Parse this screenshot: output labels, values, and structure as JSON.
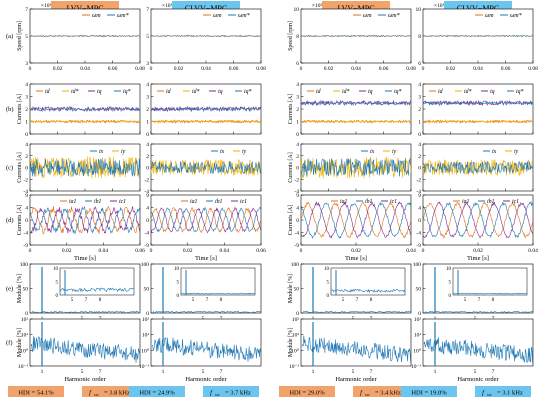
{
  "columns": [
    {
      "title": "LVV−MPC",
      "title_color": "#f2a36b",
      "time_ticks": [
        "0",
        "0.02",
        "0.04",
        "0.06",
        "0.08"
      ],
      "d_time_ticks": [
        "0",
        "0.02",
        "0.04",
        "0.06"
      ],
      "hdi": "HDI = 54.1%",
      "fsw": "= 3.8 kHz",
      "hdi_color": "#f2a36b",
      "fsw_color": "#f2a36b"
    },
    {
      "title": "CLVV−MPC",
      "title_color": "#6cc5ee",
      "time_ticks": [
        "0",
        "0.02",
        "0.04",
        "0.06",
        "0.08"
      ],
      "d_time_ticks": [
        "0",
        "0.02",
        "0.04",
        "0.06"
      ],
      "hdi": "HDI = 24.9%",
      "fsw": "= 3.7 kHz",
      "hdi_color": "#6cc5ee",
      "fsw_color": "#6cc5ee"
    },
    {
      "title": "LVV−MPC",
      "title_color": "#f2a36b",
      "time_ticks": [
        "0",
        "0.02",
        "0.04",
        "0.06",
        "0.08"
      ],
      "d_time_ticks": [
        "0",
        "0.02",
        "0.04"
      ],
      "hdi": "HDI = 29.0%",
      "fsw": "= 3.4 kHz",
      "hdi_color": "#f2a36b",
      "fsw_color": "#f2a36b"
    },
    {
      "title": "CLVV−MPC",
      "title_color": "#6cc5ee",
      "time_ticks": [
        "0",
        "0.02",
        "0.04",
        "0.06",
        "0.08"
      ],
      "d_time_ticks": [
        "0",
        "0.02",
        "0.04"
      ],
      "hdi": "HDI = 19.0%",
      "fsw": "= 3.1 kHz",
      "hdi_color": "#6cc5ee",
      "fsw_color": "#6cc5ee"
    }
  ],
  "rows": [
    {
      "letter": "(a)",
      "ylabel": "Speed [rpm]",
      "scale_note": "×10²",
      "ticks_low": [
        "3",
        "5",
        "7"
      ],
      "ticks_high": [
        "6",
        "8",
        "10"
      ],
      "legend": [
        "ωm",
        "ωm*"
      ]
    },
    {
      "letter": "(b)",
      "ylabel": "Currents [A]",
      "ticks": [
        "0",
        "1",
        "2",
        "3",
        "4"
      ],
      "legend": [
        "id",
        "id*",
        "iq",
        "iq*"
      ]
    },
    {
      "letter": "(c)",
      "ylabel": "Currents [A]",
      "ticks": [
        "-4",
        "-2",
        "0",
        "2",
        "4"
      ],
      "legend": [
        "ix",
        "iy"
      ]
    },
    {
      "letter": "(d)",
      "ylabel": "Currents [A]",
      "ticks": [
        "-9",
        "-4",
        "0",
        "4",
        "9"
      ],
      "legend": [
        "ia1",
        "ib1",
        "ic1"
      ]
    },
    {
      "letter": "(e)",
      "ylabel": "Module [%]",
      "ticks": [
        "0",
        "50",
        "100"
      ],
      "inset_ticks": [
        "0",
        "5",
        "10"
      ],
      "inset_x": [
        "5",
        "7",
        "8"
      ]
    },
    {
      "letter": "(f)",
      "ylabel": "Module [%]",
      "ticks": [
        "10⁻¹",
        "10⁰",
        "10¹",
        "10²"
      ]
    }
  ],
  "time_label": "Time [s]",
  "harmonic_label": "Harmonic order",
  "harmonic_ticks": [
    "1",
    "5",
    "7"
  ],
  "colors": {
    "blue": "#1f77b4",
    "orange": "#e3701a",
    "yellow": "#f0b000",
    "purple": "#7e2f8e",
    "grey": "#888888"
  },
  "chart_data": {
    "type": "line",
    "panels": [
      {
        "row": "a",
        "series": [
          {
            "name": "ωm",
            "values_x100": [
              5,
              5,
              8,
              8
            ]
          },
          {
            "name": "ωm*",
            "values_x100": [
              5,
              5,
              8,
              8
            ]
          }
        ],
        "ylim_low": [
          3,
          7
        ],
        "ylim_high": [
          6,
          10
        ]
      },
      {
        "row": "b",
        "series": [
          {
            "name": "id",
            "approx": [
              1,
              1,
              1,
              1
            ]
          },
          {
            "name": "iq",
            "approx": [
              2,
              2,
              3,
              3
            ]
          }
        ],
        "ylim": [
          0,
          4
        ]
      },
      {
        "row": "c",
        "ylim": [
          -4,
          4
        ]
      },
      {
        "row": "d",
        "ylim": [
          -9,
          9
        ]
      },
      {
        "row": "e",
        "ylim": [
          0,
          100
        ],
        "fundamental_harmonic": 1
      },
      {
        "row": "f",
        "yscale": "log",
        "ylim": [
          0.1,
          100
        ]
      }
    ]
  }
}
